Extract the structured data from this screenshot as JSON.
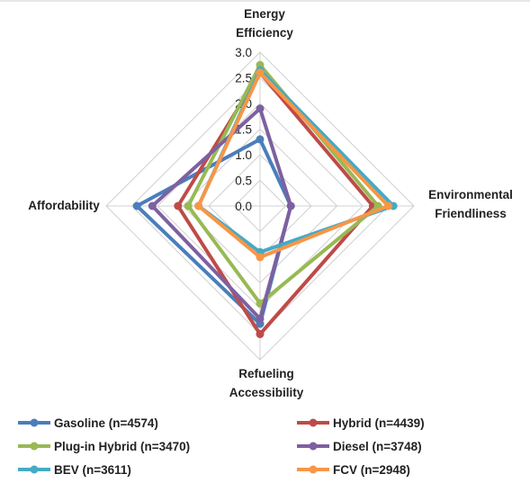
{
  "chart_data": {
    "type": "radar",
    "axes": [
      "Energy Efficiency",
      "Environmental Friendliness",
      "Refueling Accessibility",
      "Affordability"
    ],
    "axis_title_lines": [
      [
        "Energy",
        "Efficiency"
      ],
      [
        "Environmental",
        "Friendliness"
      ],
      [
        "Refueling",
        "Accessibility"
      ],
      [
        "Affordability"
      ]
    ],
    "rlim": [
      0,
      3.0
    ],
    "ticks": [
      "0.0",
      "0.5",
      "1.0",
      "1.5",
      "2.0",
      "2.5",
      "3.0"
    ],
    "grid": true,
    "legend_position": "bottom",
    "series": [
      {
        "name": "Gasoline (n=4574)",
        "color": "#4a7ebb",
        "values": [
          1.3,
          0.6,
          2.3,
          2.4
        ]
      },
      {
        "name": "Hybrid (n=4439)",
        "color": "#be4b48",
        "values": [
          2.6,
          2.2,
          2.5,
          1.6
        ]
      },
      {
        "name": "Plug-in Hybrid (n=3470)",
        "color": "#98b954",
        "values": [
          2.75,
          2.3,
          1.9,
          1.4
        ]
      },
      {
        "name": "Diesel (n=3748)",
        "color": "#7d60a0",
        "values": [
          1.9,
          0.6,
          2.2,
          2.1
        ]
      },
      {
        "name": "BEV (n=3611)",
        "color": "#46aac5",
        "values": [
          2.65,
          2.6,
          0.9,
          1.2
        ]
      },
      {
        "name": "FCV (n=2948)",
        "color": "#f79646",
        "values": [
          2.6,
          2.5,
          1.0,
          1.2
        ]
      }
    ]
  }
}
